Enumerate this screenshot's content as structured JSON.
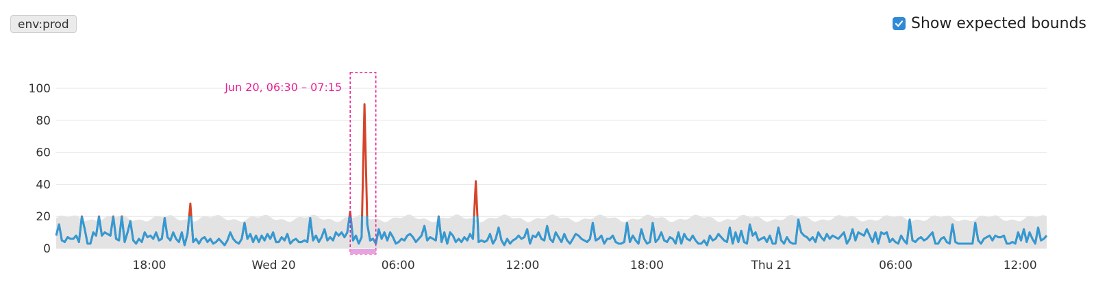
{
  "filter_tag": "env:prod",
  "bounds_toggle": {
    "label": "Show expected bounds",
    "checked": true
  },
  "colors": {
    "series": "#2f9bd6",
    "anomaly": "#d4452b",
    "bounds": "#e3e3e3",
    "annotation": "#e81e93",
    "legend_swatch": "#e7a3e0"
  },
  "chart_data": {
    "type": "line",
    "ylim": [
      0,
      100
    ],
    "y_ticks": [
      0,
      20,
      40,
      60,
      80,
      100
    ],
    "x_ticks": [
      "18:00",
      "Wed 20",
      "06:00",
      "12:00",
      "18:00",
      "Thu 21",
      "06:00",
      "12:00"
    ],
    "annotation": {
      "label": "Jun 20, 06:30 – 07:15"
    },
    "series": [
      {
        "values": [
          8,
          15,
          5,
          4,
          7,
          6,
          6,
          8,
          4,
          20,
          12,
          3,
          3,
          10,
          8,
          20,
          8,
          10,
          9,
          8,
          20,
          6,
          5,
          20,
          4,
          10,
          17,
          5,
          3,
          6,
          4,
          10,
          7,
          8,
          6,
          10,
          5,
          6,
          19,
          7,
          5,
          10,
          6,
          4,
          10,
          2,
          9,
          28,
          4,
          6,
          3,
          6,
          7,
          4,
          6,
          3,
          4,
          6,
          4,
          2,
          5,
          10,
          6,
          4,
          3,
          6,
          16,
          6,
          9,
          4,
          8,
          4,
          8,
          5,
          9,
          6,
          10,
          4,
          4,
          7,
          5,
          9,
          3,
          5,
          6,
          4,
          4,
          5,
          4,
          19,
          5,
          8,
          4,
          7,
          12,
          5,
          7,
          5,
          10,
          8,
          10,
          7,
          10,
          23,
          5,
          8,
          3,
          7,
          90,
          15,
          5,
          6,
          3,
          12,
          6,
          10,
          5,
          10,
          7,
          3,
          4,
          6,
          5,
          8,
          9,
          7,
          4,
          6,
          8,
          14,
          5,
          7,
          6,
          5,
          20,
          4,
          10,
          3,
          10,
          8,
          4,
          6,
          4,
          7,
          5,
          9,
          6,
          42,
          4,
          5,
          4,
          5,
          9,
          3,
          6,
          13,
          5,
          2,
          6,
          3,
          5,
          6,
          8,
          6,
          7,
          12,
          3,
          8,
          7,
          10,
          6,
          5,
          14,
          6,
          4,
          10,
          7,
          4,
          9,
          5,
          3,
          6,
          9,
          8,
          6,
          5,
          4,
          6,
          16,
          5,
          6,
          8,
          3,
          6,
          6,
          8,
          4,
          3,
          3,
          4,
          16,
          4,
          8,
          5,
          3,
          12,
          6,
          3,
          4,
          16,
          4,
          6,
          10,
          5,
          4,
          7,
          6,
          3,
          10,
          3,
          9,
          6,
          5,
          8,
          5,
          3,
          3,
          5,
          2,
          8,
          5,
          6,
          9,
          7,
          5,
          4,
          13,
          3,
          10,
          4,
          11,
          4,
          3,
          15,
          8,
          10,
          5,
          6,
          7,
          4,
          8,
          3,
          3,
          13,
          5,
          3,
          7,
          4,
          3,
          3,
          18,
          10,
          8,
          7,
          5,
          7,
          4,
          10,
          7,
          5,
          9,
          6,
          8,
          7,
          6,
          8,
          10,
          3,
          6,
          12,
          5,
          10,
          9,
          8,
          12,
          8,
          4,
          10,
          3,
          10,
          9,
          10,
          4,
          6,
          4,
          3,
          8,
          5,
          3,
          18,
          5,
          4,
          6,
          7,
          5,
          6,
          8,
          10,
          3,
          3,
          6,
          7,
          4,
          3,
          15,
          4,
          3,
          3,
          3,
          3,
          3,
          3,
          16,
          5,
          3,
          6,
          7,
          8,
          5,
          8,
          7,
          7,
          8,
          3,
          3,
          4,
          3,
          10,
          5,
          12,
          4,
          10,
          6,
          3,
          13,
          5,
          6,
          8
        ]
      }
    ]
  }
}
